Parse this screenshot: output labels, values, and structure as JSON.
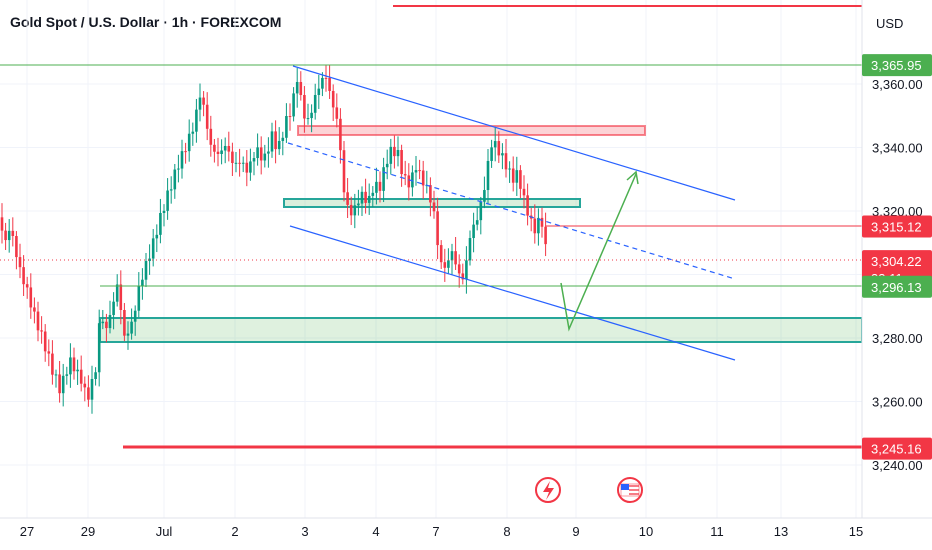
{
  "header": {
    "title": "Gold Spot / U.S. Dollar · 1h · FOREXCOM"
  },
  "chart_data": {
    "type": "candlestick",
    "currency": "USD",
    "ylim": [
      3236,
      3372
    ],
    "y_ticks": [
      "3,240.00",
      "3,260.00",
      "3,280.00",
      "3,300.00",
      "3,320.00",
      "3,340.00",
      "3,360.00"
    ],
    "y_tick_values": [
      3240,
      3260,
      3280,
      3300,
      3320,
      3340,
      3360
    ],
    "x_ticks": [
      "27",
      "29",
      "Jul",
      "2",
      "3",
      "4",
      "7",
      "8",
      "9",
      "10",
      "11",
      "13",
      "15"
    ],
    "price_tags": [
      {
        "label": "3,365.95",
        "value": 3365.95,
        "color": "#4caf50"
      },
      {
        "label": "3,315.12",
        "value": 3315.12,
        "color": "#f23645"
      },
      {
        "label": "3,304.22",
        "value": 3304.22,
        "color": "#f23645",
        "sub": "33:11"
      },
      {
        "label": "3,296.13",
        "value": 3296.13,
        "color": "#4caf50"
      },
      {
        "label": "3,245.16",
        "value": 3245.16,
        "color": "#f23645"
      }
    ],
    "colors": {
      "up": "#089981",
      "down": "#f23645",
      "channel": "#2962ff",
      "projection": "#4caf50"
    }
  }
}
